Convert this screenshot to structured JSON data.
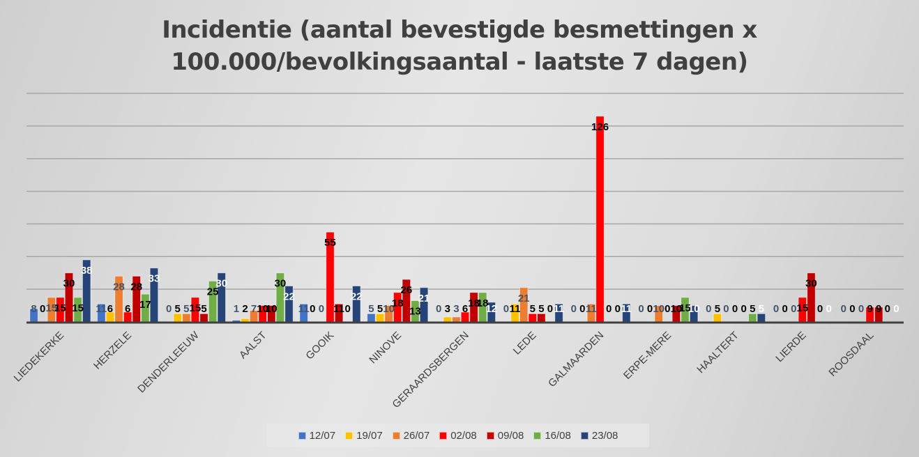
{
  "chart_data": {
    "type": "bar",
    "title": "Incidentie (aantal bevestigde besmettingen x 100.000/bevolkingsaantal - laatste 7 dagen)",
    "title_lines": [
      "Incidentie (aantal bevestigde besmettingen x",
      "100.000/bevolkingsaantal - laatste 7 dagen)"
    ],
    "xlabel": "",
    "ylabel": "",
    "ylim": [
      0,
      140
    ],
    "grid_step": 20,
    "grid": true,
    "legend_position": "bottom",
    "categories": [
      "LIEDEKERKE",
      "HERZELE",
      "DENDERLEEUW",
      "AALST",
      "GOOIK",
      "NINOVE",
      "GERAARDSBERGEN",
      "LEDE",
      "GALMAARDEN",
      "ERPE-MERE",
      "HAALTERT",
      "LIERDE",
      "ROOSDAAL"
    ],
    "series": [
      {
        "name": "12/07",
        "color": "#4472c4",
        "label_color": "#44546a",
        "values": [
          8,
          11,
          0,
          1,
          11,
          5,
          0,
          0,
          0,
          0,
          0,
          0,
          0
        ]
      },
      {
        "name": "19/07",
        "color": "#ffc000",
        "label_color": "#000000",
        "values": [
          0,
          6,
          5,
          2,
          0,
          5,
          3,
          11,
          0,
          0,
          5,
          0,
          0
        ]
      },
      {
        "name": "26/07",
        "color": "#ed7d31",
        "label_color": "#44546a",
        "values": [
          15,
          28,
          5,
          7,
          0,
          10,
          3,
          21,
          11,
          10,
          0,
          0,
          0
        ]
      },
      {
        "name": "02/08",
        "color": "#ff0000",
        "label_color": "#000000",
        "values": [
          15,
          6,
          15,
          10,
          55,
          18,
          6,
          5,
          126,
          0,
          0,
          15,
          9
        ]
      },
      {
        "name": "09/08",
        "color": "#c00000",
        "label_color": "#000000",
        "values": [
          30,
          28,
          5,
          10,
          11,
          26,
          18,
          5,
          0,
          10,
          0,
          30,
          9
        ]
      },
      {
        "name": "16/08",
        "color": "#70ad47",
        "label_color": "#000000",
        "values": [
          15,
          17,
          25,
          30,
          0,
          13,
          18,
          0,
          0,
          15,
          5,
          0,
          0
        ]
      },
      {
        "name": "23/08",
        "color": "#264478",
        "label_color": "#ffffff",
        "values": [
          38,
          33,
          30,
          22,
          22,
          21,
          12,
          11,
          11,
          10,
          5,
          0,
          0
        ]
      }
    ]
  }
}
